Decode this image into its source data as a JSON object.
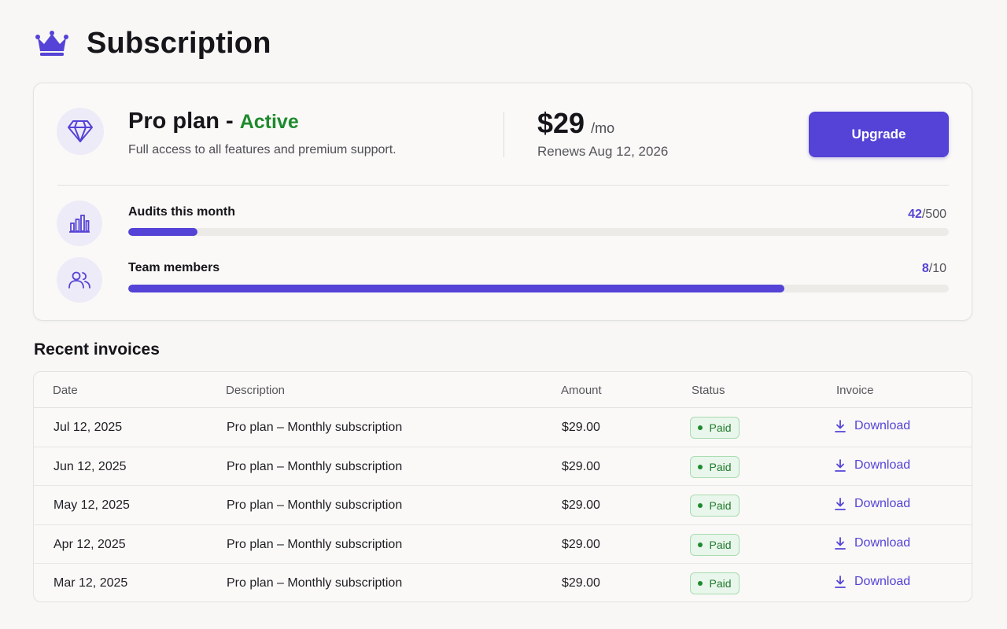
{
  "page": {
    "title": "Subscription",
    "icon": "crown-icon"
  },
  "plan": {
    "icon": "diamond-icon",
    "name": "Pro plan",
    "separator": "-",
    "status": "Active",
    "description": "Full access to all features and premium support.",
    "price": "$29",
    "price_unit": "/mo",
    "renews": "Renews Aug 12, 2026",
    "upgrade_label": "Upgrade"
  },
  "usage": [
    {
      "icon": "bar-chart-icon",
      "label": "Audits this month",
      "used": "42",
      "limit": "/500",
      "fraction": 0.084
    },
    {
      "icon": "users-icon",
      "label": "Team members",
      "used": "8",
      "limit": "/10",
      "fraction": 0.8
    }
  ],
  "invoices": {
    "title": "Recent invoices",
    "columns": [
      "Date",
      "Description",
      "Amount",
      "Status",
      "Invoice"
    ],
    "rows": [
      {
        "date": "Jul 12, 2025",
        "description": "Pro plan – Monthly subscription",
        "amount": "$29.00",
        "status": "Paid",
        "action": "Download"
      },
      {
        "date": "Jun 12, 2025",
        "description": "Pro plan – Monthly subscription",
        "amount": "$29.00",
        "status": "Paid",
        "action": "Download"
      },
      {
        "date": "May 12, 2025",
        "description": "Pro plan – Monthly subscription",
        "amount": "$29.00",
        "status": "Paid",
        "action": "Download"
      },
      {
        "date": "Apr 12, 2025",
        "description": "Pro plan – Monthly subscription",
        "amount": "$29.00",
        "status": "Paid",
        "action": "Download"
      },
      {
        "date": "Mar 12, 2025",
        "description": "Pro plan – Monthly subscription",
        "amount": "$29.00",
        "status": "Paid",
        "action": "Download"
      }
    ]
  },
  "colors": {
    "accent": "#5443d6",
    "success": "#1e8a2e",
    "background": "#f8f7f5"
  }
}
